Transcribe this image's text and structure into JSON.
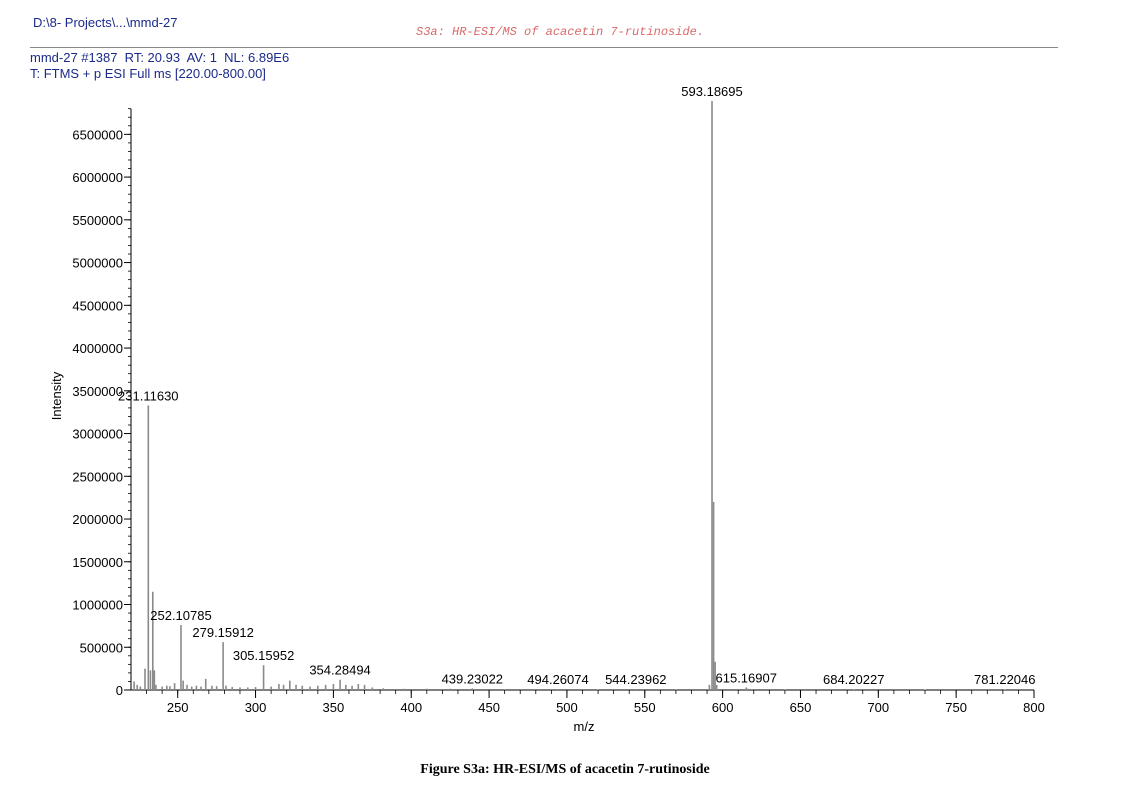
{
  "header": {
    "file_path": "D:\\8- Projects\\...\\mmd-27",
    "stamp": "S3a: HR-ESI/MS of acacetin 7-rutinoside.",
    "scan_line": "mmd-27 #1387  RT: 20.93  AV: 1  NL: 6.89E6",
    "filter_line": "T: FTMS + p ESI Full ms [220.00-800.00]"
  },
  "caption": "Figure S3a: HR-ESI/MS of acacetin 7-rutinoside",
  "chart_data": {
    "type": "bar",
    "xlabel": "m/z",
    "ylabel": "Intensity",
    "xlim": [
      220,
      800
    ],
    "ylim": [
      0,
      6890000
    ],
    "x_ticks": [
      250,
      300,
      350,
      400,
      450,
      500,
      550,
      600,
      650,
      700,
      750,
      800
    ],
    "y_ticks": [
      0,
      500000,
      1000000,
      1500000,
      2000000,
      2500000,
      3000000,
      3500000,
      4000000,
      4500000,
      5000000,
      5500000,
      6000000,
      6500000
    ],
    "peaks": [
      {
        "mz": 222,
        "intensity": 100000
      },
      {
        "mz": 224,
        "intensity": 60000
      },
      {
        "mz": 226,
        "intensity": 40000
      },
      {
        "mz": 229,
        "intensity": 250000
      },
      {
        "mz": 231.1163,
        "intensity": 3330000,
        "label": "231.11630"
      },
      {
        "mz": 232.5,
        "intensity": 230000
      },
      {
        "mz": 234,
        "intensity": 1150000
      },
      {
        "mz": 235,
        "intensity": 230000
      },
      {
        "mz": 236,
        "intensity": 60000
      },
      {
        "mz": 240,
        "intensity": 40000
      },
      {
        "mz": 243,
        "intensity": 50000
      },
      {
        "mz": 245,
        "intensity": 45000
      },
      {
        "mz": 248,
        "intensity": 80000
      },
      {
        "mz": 252.10785,
        "intensity": 760000,
        "label": "252.10785"
      },
      {
        "mz": 253.5,
        "intensity": 110000
      },
      {
        "mz": 256,
        "intensity": 60000
      },
      {
        "mz": 259,
        "intensity": 40000
      },
      {
        "mz": 262,
        "intensity": 50000
      },
      {
        "mz": 265,
        "intensity": 40000
      },
      {
        "mz": 268,
        "intensity": 130000
      },
      {
        "mz": 272,
        "intensity": 50000
      },
      {
        "mz": 275,
        "intensity": 45000
      },
      {
        "mz": 279.15912,
        "intensity": 560000,
        "label": "279.15912"
      },
      {
        "mz": 281,
        "intensity": 50000
      },
      {
        "mz": 285,
        "intensity": 35000
      },
      {
        "mz": 290,
        "intensity": 30000
      },
      {
        "mz": 295,
        "intensity": 30000
      },
      {
        "mz": 300,
        "intensity": 35000
      },
      {
        "mz": 305.15952,
        "intensity": 290000,
        "label": "305.15952"
      },
      {
        "mz": 310,
        "intensity": 40000
      },
      {
        "mz": 315,
        "intensity": 70000
      },
      {
        "mz": 318,
        "intensity": 60000
      },
      {
        "mz": 322,
        "intensity": 110000
      },
      {
        "mz": 326,
        "intensity": 60000
      },
      {
        "mz": 330,
        "intensity": 50000
      },
      {
        "mz": 335,
        "intensity": 40000
      },
      {
        "mz": 340,
        "intensity": 50000
      },
      {
        "mz": 345,
        "intensity": 60000
      },
      {
        "mz": 350,
        "intensity": 70000
      },
      {
        "mz": 354.28494,
        "intensity": 120000,
        "label": "354.28494"
      },
      {
        "mz": 358,
        "intensity": 60000
      },
      {
        "mz": 362,
        "intensity": 50000
      },
      {
        "mz": 366,
        "intensity": 70000
      },
      {
        "mz": 370,
        "intensity": 60000
      },
      {
        "mz": 375,
        "intensity": 30000
      },
      {
        "mz": 382,
        "intensity": 20000
      },
      {
        "mz": 395,
        "intensity": 15000
      },
      {
        "mz": 410,
        "intensity": 15000
      },
      {
        "mz": 425,
        "intensity": 15000
      },
      {
        "mz": 439.23022,
        "intensity": 20000,
        "label": "439.23022"
      },
      {
        "mz": 460,
        "intensity": 10000
      },
      {
        "mz": 494.26074,
        "intensity": 10000,
        "label": "494.26074"
      },
      {
        "mz": 520,
        "intensity": 8000
      },
      {
        "mz": 544.23962,
        "intensity": 10000,
        "label": "544.23962"
      },
      {
        "mz": 570,
        "intensity": 8000
      },
      {
        "mz": 591.5,
        "intensity": 60000
      },
      {
        "mz": 593.18695,
        "intensity": 6890000,
        "label": "593.18695"
      },
      {
        "mz": 594.19,
        "intensity": 2200000
      },
      {
        "mz": 595.19,
        "intensity": 330000
      },
      {
        "mz": 596.2,
        "intensity": 60000
      },
      {
        "mz": 615.16907,
        "intensity": 30000,
        "label": "615.16907"
      },
      {
        "mz": 616.5,
        "intensity": 15000
      },
      {
        "mz": 640,
        "intensity": 8000
      },
      {
        "mz": 684.20227,
        "intensity": 8000,
        "label": "684.20227"
      },
      {
        "mz": 730,
        "intensity": 6000
      },
      {
        "mz": 781.22046,
        "intensity": 8000,
        "label": "781.22046"
      }
    ]
  }
}
